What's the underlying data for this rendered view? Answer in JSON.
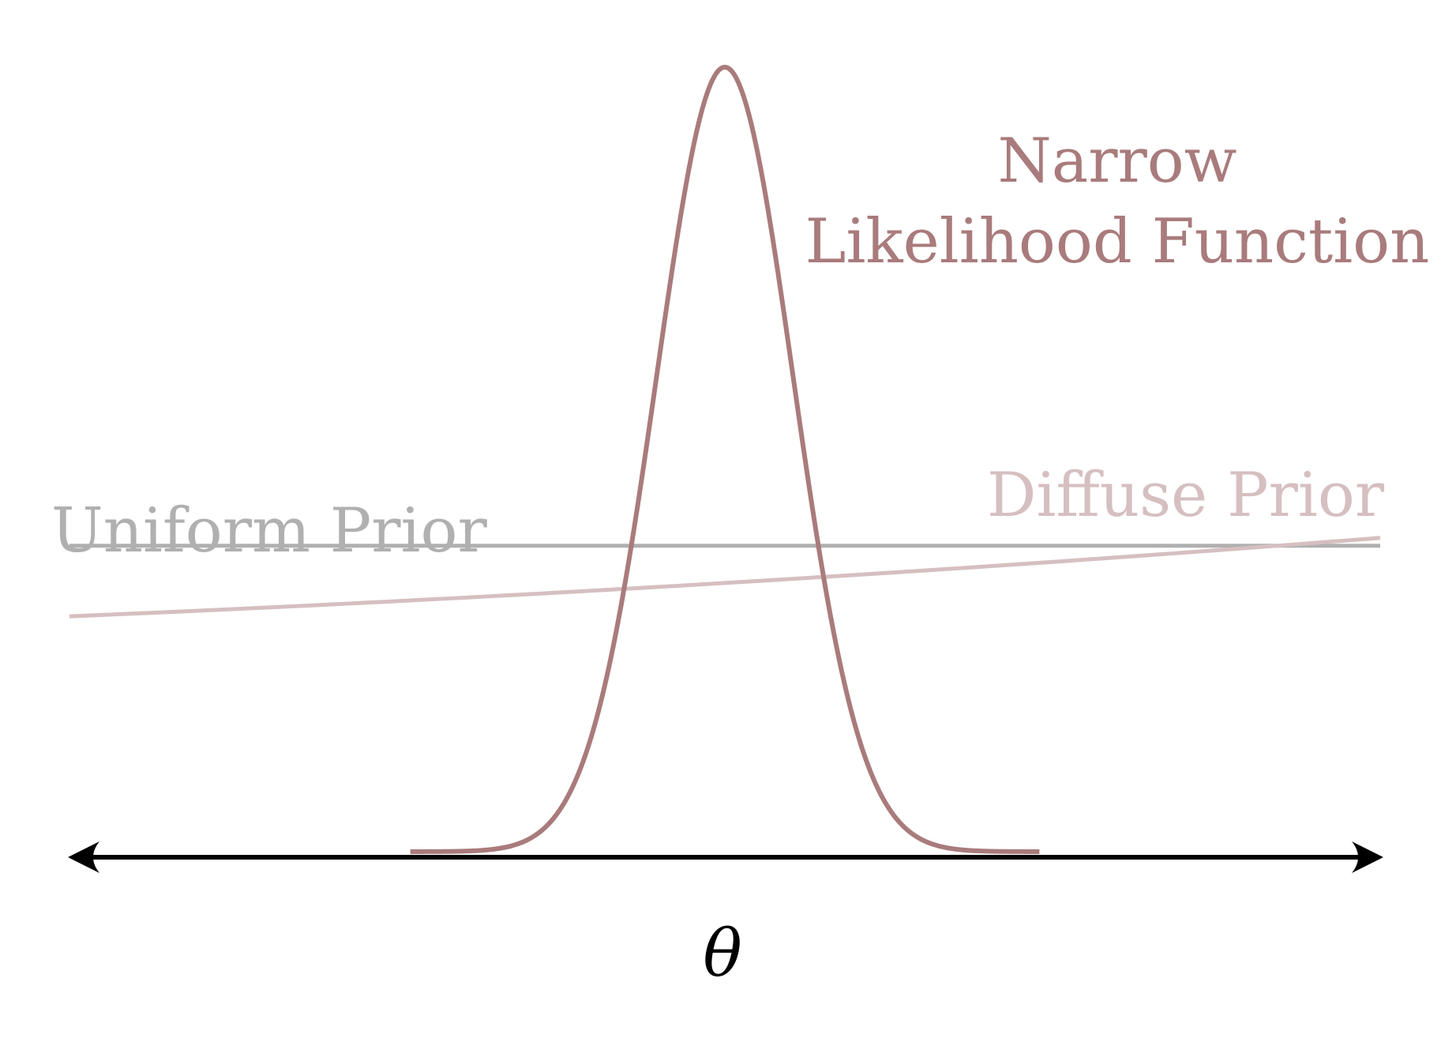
{
  "colors": {
    "background": "#ffffff",
    "likelihood": "#a97b7c",
    "uniform_prior": "#b0b0b0",
    "diffuse_prior": "#d6bfc0",
    "axis": "#000000"
  },
  "labels": {
    "likelihood_line1": "Narrow",
    "likelihood_line2": "Likelihood Function",
    "uniform_prior": "Uniform Prior",
    "diffuse_prior": "Diffuse Prior",
    "axis": "θ"
  },
  "axis": {
    "arrows": "both-ends"
  },
  "curves": {
    "likelihood": {
      "shape": "narrow-bell",
      "mean": 0.5,
      "sd": 0.052
    },
    "uniform_prior": {
      "shape": "flat",
      "level": 0.39
    },
    "diffuse_prior": {
      "shape": "gently-rising",
      "start": 0.3,
      "end": 0.4,
      "curvature": 0.3
    }
  }
}
